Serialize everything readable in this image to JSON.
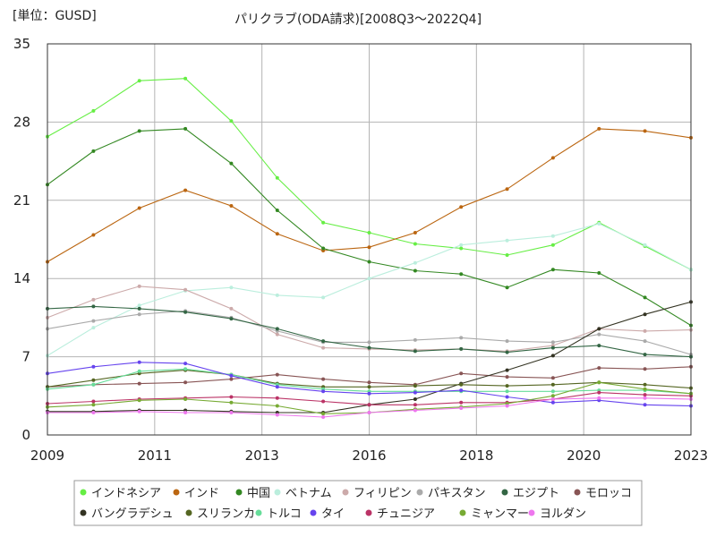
{
  "chart_data": {
    "type": "line",
    "title": "パリクラブ(ODA請求)[2008Q3～2022Q4]",
    "unit_label": "[単位：GUSD]",
    "xlabel": "",
    "ylabel": "",
    "x_ticks": [
      "2009",
      "2011",
      "2013",
      "2016",
      "2018",
      "2020",
      "2023"
    ],
    "y_ticks": [
      "0",
      "7",
      "14",
      "21",
      "28",
      "35"
    ],
    "ylim": [
      0,
      35
    ],
    "grid": true,
    "legend_position": "bottom",
    "x": [
      "2009",
      "2010",
      "2011",
      "2012",
      "2013",
      "2014",
      "2015",
      "2016",
      "2017",
      "2018",
      "2019",
      "2020",
      "2021",
      "2022",
      "2023"
    ],
    "series": [
      {
        "name": "インドネシア",
        "color": "#66ee44",
        "values": [
          26.7,
          29.0,
          31.7,
          31.9,
          28.1,
          23.0,
          19.0,
          18.1,
          17.1,
          16.7,
          16.1,
          17.0,
          19.0,
          16.9,
          14.8
        ]
      },
      {
        "name": "インド",
        "color": "#bb6611",
        "values": [
          15.5,
          17.9,
          20.3,
          21.9,
          20.5,
          18.0,
          16.5,
          16.8,
          18.1,
          20.4,
          22.0,
          24.8,
          27.4,
          27.2,
          26.6
        ]
      },
      {
        "name": "中国",
        "color": "#338822",
        "values": [
          22.4,
          25.4,
          27.2,
          27.4,
          24.3,
          20.1,
          16.7,
          15.5,
          14.7,
          14.4,
          13.2,
          14.8,
          14.5,
          12.3,
          9.8
        ]
      },
      {
        "name": "ベトナム",
        "color": "#bbeedd",
        "values": [
          7.1,
          9.6,
          11.6,
          12.9,
          13.2,
          12.5,
          12.3,
          14.0,
          15.4,
          17.0,
          17.4,
          17.8,
          18.9,
          17.0,
          14.8
        ]
      },
      {
        "name": "フィリピン",
        "color": "#ccaaaa",
        "values": [
          10.5,
          12.1,
          13.3,
          13.0,
          11.3,
          9.0,
          7.8,
          7.7,
          7.6,
          7.7,
          7.5,
          8.0,
          9.5,
          9.3,
          9.4
        ]
      },
      {
        "name": "パキスタン",
        "color": "#aaaaaa",
        "values": [
          9.5,
          10.2,
          10.8,
          11.1,
          10.5,
          9.3,
          8.3,
          8.3,
          8.5,
          8.7,
          8.4,
          8.3,
          9.0,
          8.4,
          7.2
        ]
      },
      {
        "name": "エジプト",
        "color": "#336644",
        "values": [
          11.3,
          11.5,
          11.3,
          11.0,
          10.4,
          9.5,
          8.4,
          7.8,
          7.5,
          7.7,
          7.4,
          7.8,
          8.0,
          7.2,
          7.0
        ]
      },
      {
        "name": "モロッコ",
        "color": "#885555",
        "values": [
          4.3,
          4.5,
          4.6,
          4.7,
          5.0,
          5.4,
          5.0,
          4.7,
          4.5,
          5.5,
          5.2,
          5.1,
          6.0,
          5.9,
          6.1
        ]
      },
      {
        "name": "バングラデシュ",
        "color": "#333322",
        "values": [
          2.1,
          2.1,
          2.2,
          2.2,
          2.1,
          2.0,
          2.0,
          2.7,
          3.2,
          4.6,
          5.8,
          7.1,
          9.5,
          10.8,
          11.9
        ]
      },
      {
        "name": "スリランカ",
        "color": "#556622",
        "values": [
          4.3,
          4.9,
          5.5,
          5.8,
          5.4,
          4.6,
          4.3,
          4.3,
          4.4,
          4.5,
          4.4,
          4.5,
          4.7,
          4.5,
          4.2
        ]
      },
      {
        "name": "トルコ",
        "color": "#66dd99",
        "values": [
          4.1,
          4.5,
          5.7,
          5.9,
          5.4,
          4.5,
          4.1,
          3.9,
          3.9,
          3.9,
          3.9,
          3.9,
          4.0,
          4.0,
          3.7
        ]
      },
      {
        "name": "タイ",
        "color": "#6644ee",
        "values": [
          5.5,
          6.1,
          6.5,
          6.4,
          5.3,
          4.3,
          3.9,
          3.7,
          3.8,
          4.0,
          3.4,
          2.9,
          3.1,
          2.7,
          2.6
        ]
      },
      {
        "name": "チュニジア",
        "color": "#bb3366",
        "values": [
          2.8,
          3.0,
          3.2,
          3.3,
          3.4,
          3.3,
          3.0,
          2.7,
          2.7,
          2.9,
          2.9,
          3.2,
          3.8,
          3.6,
          3.5
        ]
      },
      {
        "name": "ミャンマー",
        "color": "#77aa33",
        "values": [
          2.5,
          2.7,
          3.1,
          3.2,
          2.9,
          2.6,
          1.9,
          2.0,
          2.3,
          2.5,
          2.8,
          3.5,
          4.7,
          4.1,
          3.7
        ]
      },
      {
        "name": "ヨルダン",
        "color": "#ee77ee",
        "values": [
          2.0,
          2.0,
          2.1,
          2.0,
          2.0,
          1.8,
          1.6,
          2.0,
          2.2,
          2.4,
          2.6,
          3.2,
          3.3,
          3.3,
          3.2
        ]
      }
    ]
  }
}
